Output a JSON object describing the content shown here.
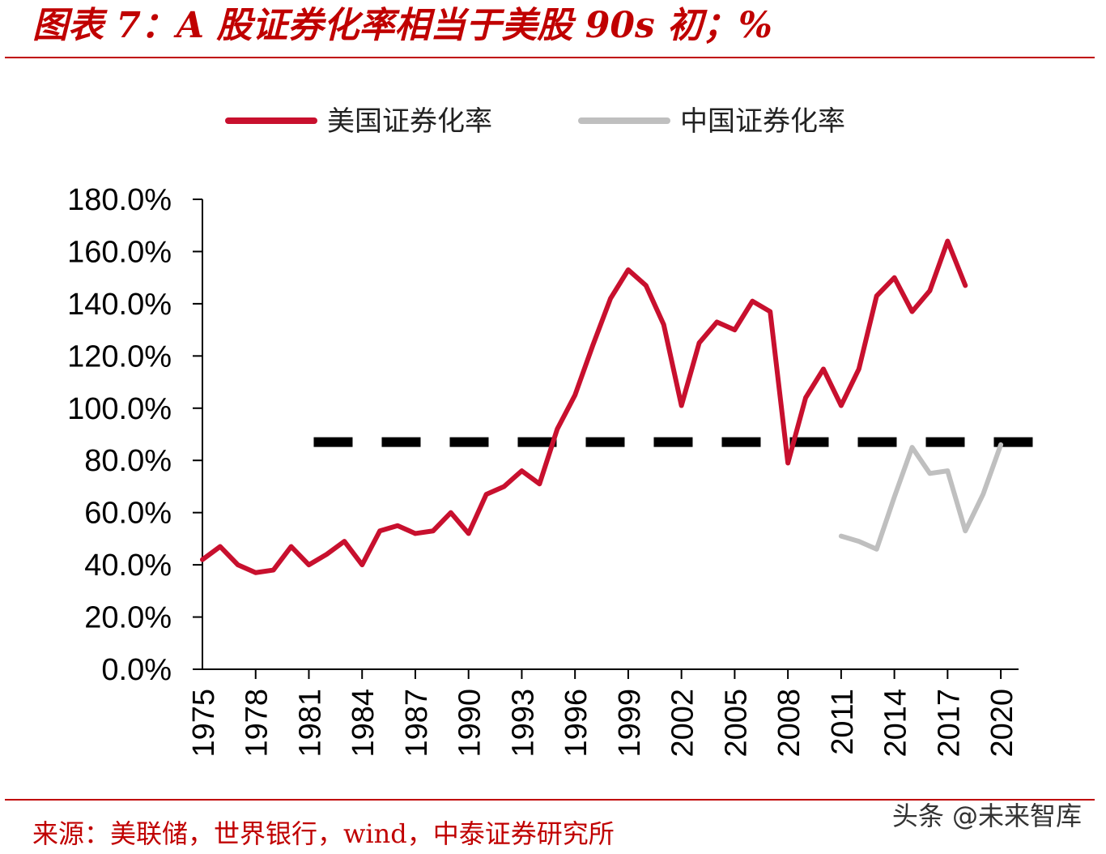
{
  "header": {
    "title": "图表 7：A 股证券化率相当于美股 90s 初；%"
  },
  "footer": {
    "source": "来源：美联储，世界银行，wind，中泰证券研究所",
    "watermark": "头条 @未来智库"
  },
  "colors": {
    "title": "#c00000",
    "us_series": "#c8102e",
    "cn_series": "#bfbfbf",
    "reference_line": "#000000",
    "axis": "#000000"
  },
  "chart_data": {
    "type": "line",
    "title": "",
    "xlabel": "",
    "ylabel": "",
    "ylim": [
      0,
      180
    ],
    "y_ticks": [
      0,
      20,
      40,
      60,
      80,
      100,
      120,
      140,
      160,
      180
    ],
    "y_tick_labels": [
      "0.0%",
      "20.0%",
      "40.0%",
      "60.0%",
      "80.0%",
      "100.0%",
      "120.0%",
      "140.0%",
      "160.0%",
      "180.0%"
    ],
    "x_range": [
      1975,
      2021
    ],
    "x_tick_labels": [
      "1975",
      "1978",
      "1981",
      "1984",
      "1987",
      "1990",
      "1993",
      "1996",
      "1999",
      "2002",
      "2005",
      "2008",
      "2011",
      "2014",
      "2017",
      "2020"
    ],
    "legend_position": "top",
    "grid": false,
    "series": [
      {
        "name": "美国证券化率",
        "x": [
          1975,
          1976,
          1977,
          1978,
          1979,
          1980,
          1981,
          1982,
          1983,
          1984,
          1985,
          1986,
          1987,
          1988,
          1989,
          1990,
          1991,
          1992,
          1993,
          1994,
          1995,
          1996,
          1997,
          1998,
          1999,
          2000,
          2001,
          2002,
          2003,
          2004,
          2005,
          2006,
          2007,
          2008,
          2009,
          2010,
          2011,
          2012,
          2013,
          2014,
          2015,
          2016,
          2017,
          2018
        ],
        "values": [
          42,
          47,
          40,
          37,
          38,
          47,
          40,
          44,
          49,
          40,
          53,
          55,
          52,
          53,
          60,
          52,
          67,
          70,
          76,
          71,
          92,
          105,
          124,
          142,
          153,
          147,
          132,
          101,
          125,
          133,
          130,
          141,
          137,
          79,
          104,
          115,
          101,
          115,
          143,
          150,
          137,
          145,
          164,
          147
        ]
      },
      {
        "name": "中国证券化率",
        "x": [
          2011,
          2012,
          2013,
          2014,
          2015,
          2016,
          2017,
          2018,
          2019,
          2020
        ],
        "values": [
          51,
          49,
          46,
          66,
          85,
          75,
          76,
          53,
          67,
          86
        ]
      }
    ],
    "reference_line": {
      "value": 87,
      "x_start": 1981,
      "x_end": 2021,
      "style": "dashed"
    }
  }
}
